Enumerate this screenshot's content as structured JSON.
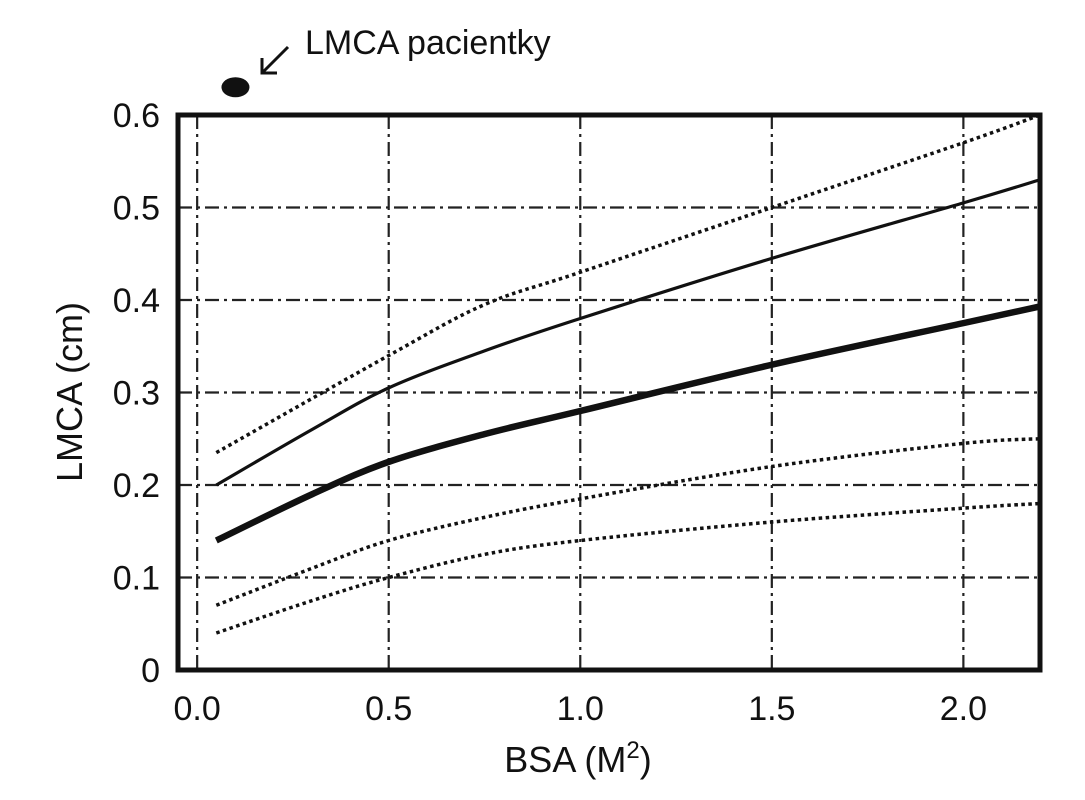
{
  "chart_data": {
    "type": "line",
    "title": "",
    "xlabel": "BSA (M",
    "xlabel_sup": "2",
    "xlabel_end": ")",
    "ylabel": "LMCA (cm)",
    "xlim": [
      -0.05,
      2.2
    ],
    "ylim": [
      0,
      0.6
    ],
    "xticks": [
      0.0,
      0.5,
      1.0,
      1.5,
      2.0
    ],
    "xtick_labels": [
      "0.0",
      "0.5",
      "1.0",
      "1.5",
      "2.0"
    ],
    "yticks": [
      0,
      0.1,
      0.2,
      0.3,
      0.4,
      0.5,
      0.6
    ],
    "ytick_labels": [
      "0",
      "0.1",
      "0.2",
      "0.3",
      "0.4",
      "0.5",
      "0.6"
    ],
    "grid": true,
    "legend": "none",
    "series": [
      {
        "style": "dotted",
        "weight": "thin",
        "x": [
          0.05,
          0.5,
          0.75,
          1.0,
          1.5,
          2.0,
          2.2
        ],
        "y": [
          0.235,
          0.34,
          0.395,
          0.43,
          0.5,
          0.57,
          0.6
        ]
      },
      {
        "style": "solid",
        "weight": "medium",
        "x": [
          0.05,
          0.3,
          0.5,
          0.75,
          1.0,
          1.5,
          2.0,
          2.2
        ],
        "y": [
          0.2,
          0.26,
          0.305,
          0.345,
          0.38,
          0.445,
          0.505,
          0.53
        ]
      },
      {
        "style": "solid",
        "weight": "thick",
        "x": [
          0.05,
          0.3,
          0.5,
          0.75,
          1.0,
          1.5,
          2.0,
          2.2
        ],
        "y": [
          0.14,
          0.19,
          0.225,
          0.255,
          0.28,
          0.33,
          0.375,
          0.393
        ]
      },
      {
        "style": "dotted",
        "weight": "thin",
        "x": [
          0.05,
          0.3,
          0.5,
          0.75,
          1.0,
          1.5,
          2.0,
          2.2
        ],
        "y": [
          0.07,
          0.11,
          0.14,
          0.165,
          0.185,
          0.22,
          0.245,
          0.25
        ]
      },
      {
        "style": "dotted",
        "weight": "thin",
        "x": [
          0.05,
          0.3,
          0.5,
          0.75,
          1.0,
          1.5,
          2.0,
          2.2
        ],
        "y": [
          0.04,
          0.075,
          0.1,
          0.125,
          0.14,
          0.16,
          0.175,
          0.18
        ]
      }
    ],
    "annotation": {
      "text": "LMCA pacientky",
      "point": {
        "x": 0.1,
        "y": 0.63
      }
    }
  }
}
